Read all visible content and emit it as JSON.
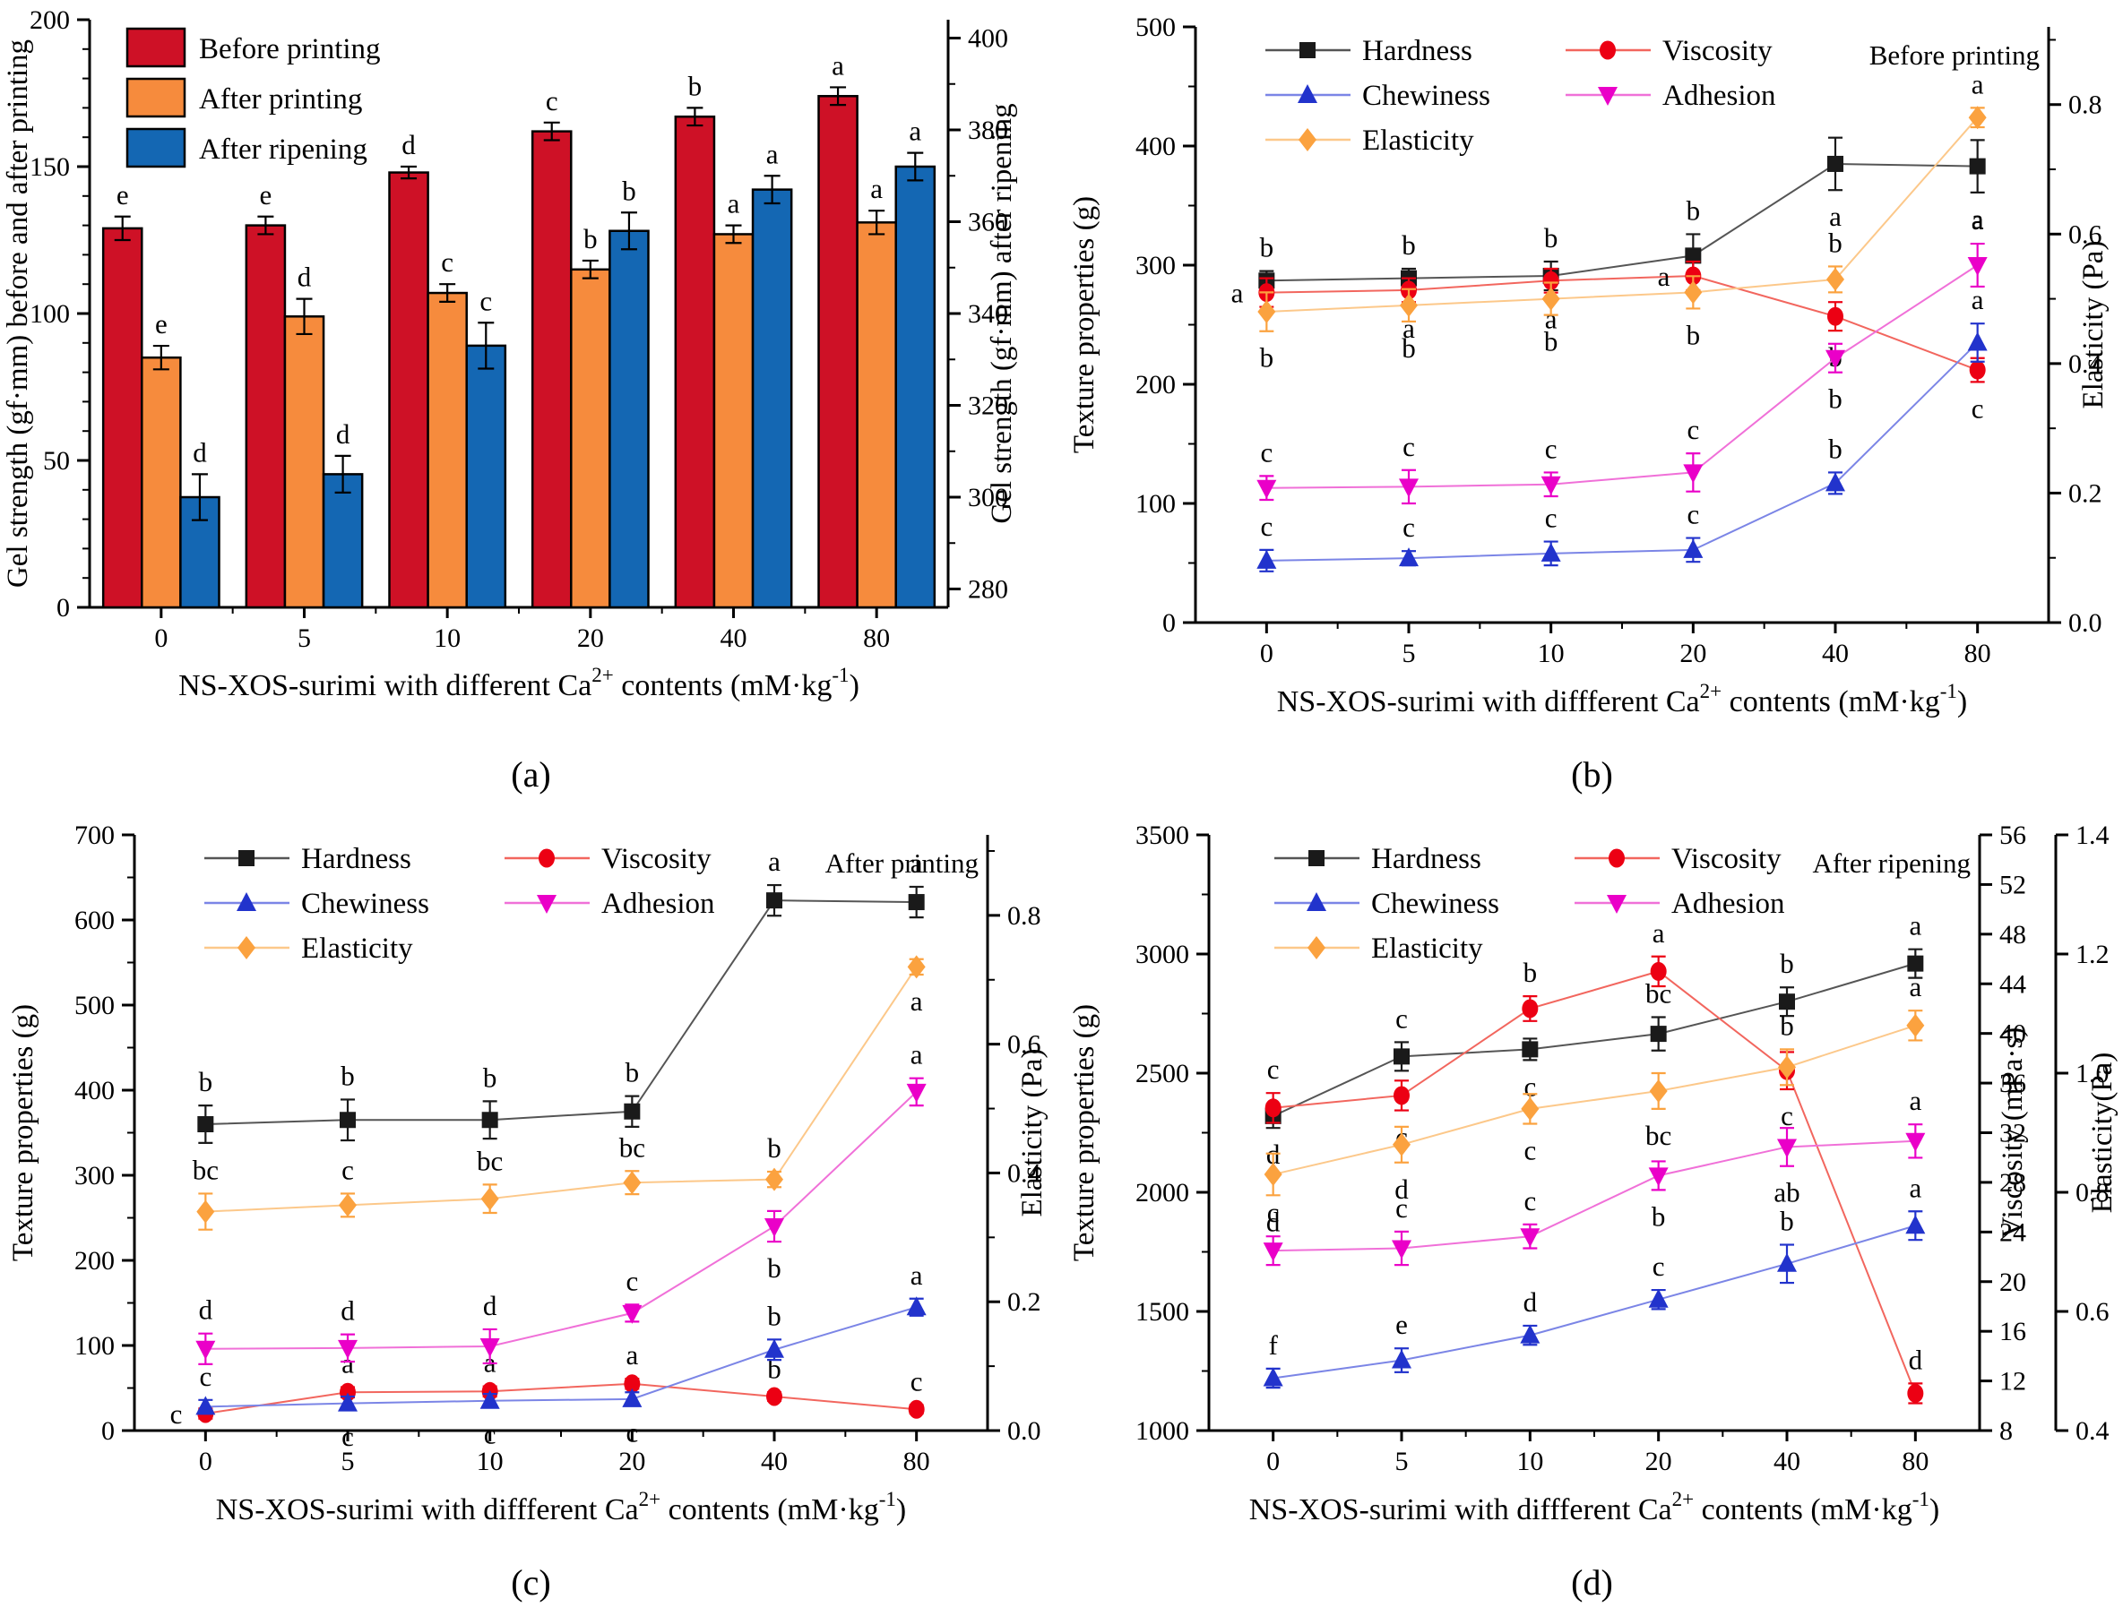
{
  "figure": {
    "captions": {
      "a": "(a)",
      "b": "(b)",
      "c": "(c)",
      "d": "(d)"
    }
  },
  "chart_data": [
    {
      "id": "a",
      "type": "bar",
      "panel_tag": "",
      "x_categories": [
        "0",
        "5",
        "10",
        "20",
        "40",
        "80"
      ],
      "x_title_parts": [
        {
          "t": "NS-XOS-surimi with different Ca"
        },
        {
          "t": "2+",
          "sup": true
        },
        {
          "t": " contents (mM·kg"
        },
        {
          "t": "-1",
          "sup": true
        },
        {
          "t": ")"
        }
      ],
      "axes": {
        "left": {
          "title": "Gel strength (gf·mm) before and after printing",
          "min": 0,
          "max": 200,
          "major": 50,
          "minor": 10,
          "decimals": 0
        },
        "right": {
          "title": "Gel strength (gf·mm) after ripening",
          "min": 276,
          "max": 404,
          "major": 20,
          "minor": 10,
          "label_start": 280,
          "label_end": 400,
          "decimals": 0
        }
      },
      "legend": {
        "style": "swatches",
        "rows": [
          [
            "Before printing"
          ],
          [
            "After printing"
          ],
          [
            "After ripening"
          ]
        ]
      },
      "series": [
        {
          "name": "Before printing",
          "axis": "left",
          "color": "#ce1126",
          "values": [
            129,
            130,
            148,
            162,
            167,
            174
          ],
          "errors": [
            4,
            3,
            2,
            3,
            3,
            3
          ],
          "letters": [
            "e",
            "e",
            "d",
            "c",
            "b",
            "a"
          ]
        },
        {
          "name": "After printing",
          "axis": "left",
          "color": "#f68b3d",
          "values": [
            85,
            99,
            107,
            115,
            127,
            131
          ],
          "errors": [
            4,
            6,
            3,
            3,
            3,
            4
          ],
          "letters": [
            "e",
            "d",
            "c",
            "b",
            "a",
            "a"
          ]
        },
        {
          "name": "After ripening",
          "axis": "right",
          "color": "#1467b3",
          "values": [
            300,
            305,
            333,
            358,
            367,
            372
          ],
          "errors": [
            5,
            4,
            5,
            4,
            3,
            3
          ],
          "letters": [
            "d",
            "d",
            "c",
            "b",
            "a",
            "a"
          ]
        }
      ]
    },
    {
      "id": "b",
      "type": "line",
      "panel_tag": "Before printing",
      "x_categories": [
        "0",
        "5",
        "10",
        "20",
        "40",
        "80"
      ],
      "x_title_parts": [
        {
          "t": "NS-XOS-surimi with diffferent Ca"
        },
        {
          "t": "2+",
          "sup": true
        },
        {
          "t": " contents (mM·kg"
        },
        {
          "t": "-1",
          "sup": true
        },
        {
          "t": ")"
        }
      ],
      "axes": {
        "left": {
          "title": "Texture properties (g)",
          "min": 0,
          "max": 500,
          "major": 100,
          "minor": 50,
          "decimals": 0
        },
        "right": {
          "title": "Elasticity (Pa)",
          "min": 0,
          "max": 0.92,
          "major": 0.2,
          "minor": 0.1,
          "label_start": 0,
          "label_end": 0.8,
          "decimals": 1
        }
      },
      "legend": {
        "style": "lines",
        "rows": [
          [
            "Hardness",
            "Viscosity"
          ],
          [
            "Chewiness",
            "Adhesion"
          ],
          [
            "Elasticity"
          ]
        ]
      },
      "series": [
        {
          "name": "Hardness",
          "axis": "left",
          "marker": "square",
          "color": "#1a1a1a",
          "line_color": "#555555",
          "values": [
            287,
            289,
            291,
            308,
            385,
            383
          ],
          "errors": [
            8,
            8,
            12,
            18,
            22,
            22
          ],
          "letters": [
            "b",
            "b",
            "b",
            "b",
            "a",
            "a"
          ],
          "letter_pos": [
            "above",
            "above",
            "above",
            "above",
            "below",
            "below"
          ]
        },
        {
          "name": "Viscosity",
          "axis": "left",
          "marker": "circle",
          "color": "#ec0013",
          "line_color": "#f2665e",
          "values": [
            277,
            279,
            287,
            291,
            257,
            212
          ],
          "errors": [
            12,
            10,
            10,
            12,
            12,
            10
          ],
          "letters": [
            "a",
            "a",
            "a",
            "a",
            "b",
            "c"
          ],
          "letter_pos": [
            "left",
            "below",
            "below",
            "left",
            "below",
            "below"
          ]
        },
        {
          "name": "Chewiness",
          "axis": "left",
          "marker": "triangle-up",
          "color": "#2233cc",
          "line_color": "#7b85e6",
          "values": [
            52,
            54,
            58,
            61,
            117,
            235
          ],
          "errors": [
            9,
            6,
            10,
            10,
            9,
            16
          ],
          "letters": [
            "c",
            "c",
            "c",
            "c",
            "b",
            "a"
          ],
          "letter_pos": [
            "above",
            "above",
            "above",
            "above",
            "above",
            "above"
          ]
        },
        {
          "name": "Adhesion",
          "axis": "left",
          "marker": "triangle-down",
          "color": "#ea00c8",
          "line_color": "#f070d8",
          "values": [
            113,
            114,
            116,
            126,
            222,
            300
          ],
          "errors": [
            10,
            14,
            10,
            16,
            12,
            18
          ],
          "letters": [
            "c",
            "c",
            "c",
            "c",
            "b",
            "a"
          ],
          "letter_pos": [
            "above",
            "above",
            "above",
            "above",
            "below",
            "above"
          ]
        },
        {
          "name": "Elasticity",
          "axis": "right",
          "marker": "diamond",
          "color": "#fba23f",
          "line_color": "#fcc88a",
          "values": [
            0.48,
            0.49,
            0.5,
            0.51,
            0.53,
            0.78
          ],
          "errors": [
            0.03,
            0.025,
            0.025,
            0.025,
            0.02,
            0.015
          ],
          "letters": [
            "b",
            "b",
            "b",
            "b",
            "b",
            "a"
          ],
          "letter_pos": [
            "below",
            "below",
            "below",
            "below",
            "above",
            "above"
          ]
        }
      ]
    },
    {
      "id": "c",
      "type": "line",
      "panel_tag": "After printing",
      "x_categories": [
        "0",
        "5",
        "10",
        "20",
        "40",
        "80"
      ],
      "x_title_parts": [
        {
          "t": "NS-XOS-surimi with diffferent Ca"
        },
        {
          "t": "2+",
          "sup": true
        },
        {
          "t": " contents (mM·kg"
        },
        {
          "t": "-1",
          "sup": true
        },
        {
          "t": ")"
        }
      ],
      "axes": {
        "left": {
          "title": "Texture properties (g)",
          "min": 0,
          "max": 700,
          "major": 100,
          "minor": 50,
          "decimals": 0
        },
        "right": {
          "title": "Elasticity (Pa)",
          "min": 0,
          "max": 0.925,
          "major": 0.2,
          "minor": 0.1,
          "label_start": 0,
          "label_end": 0.8,
          "decimals": 1
        }
      },
      "legend": {
        "style": "lines",
        "rows": [
          [
            "Hardness",
            "Viscosity"
          ],
          [
            "Chewiness",
            "Adhesion"
          ],
          [
            "Elasticity"
          ]
        ]
      },
      "series": [
        {
          "name": "Hardness",
          "axis": "left",
          "marker": "square",
          "color": "#1a1a1a",
          "line_color": "#555555",
          "values": [
            360,
            365,
            365,
            375,
            623,
            621
          ],
          "errors": [
            22,
            24,
            22,
            18,
            18,
            18
          ],
          "letters": [
            "b",
            "b",
            "b",
            "b",
            "a",
            "a"
          ],
          "letter_pos": [
            "above",
            "above",
            "above",
            "above",
            "above",
            "above"
          ]
        },
        {
          "name": "Viscosity",
          "axis": "left",
          "marker": "circle",
          "color": "#ec0013",
          "line_color": "#f2665e",
          "values": [
            20,
            45,
            46,
            55,
            40,
            25
          ],
          "errors": [
            6,
            6,
            6,
            6,
            5,
            5
          ],
          "letters": [
            "c",
            "a",
            "a",
            "a",
            "b",
            "c"
          ],
          "letter_pos": [
            "left",
            "above",
            "above",
            "above",
            "above",
            "above"
          ]
        },
        {
          "name": "Chewiness",
          "axis": "left",
          "marker": "triangle-up",
          "color": "#2233cc",
          "line_color": "#7b85e6",
          "values": [
            28,
            32,
            35,
            37,
            95,
            145
          ],
          "errors": [
            8,
            8,
            8,
            8,
            12,
            10
          ],
          "letters": [
            "c",
            "c",
            "c",
            "c",
            "b",
            "a"
          ],
          "letter_pos": [
            "above",
            "below",
            "below",
            "below",
            "above",
            "above"
          ]
        },
        {
          "name": "Adhesion",
          "axis": "left",
          "marker": "triangle-down",
          "color": "#ea00c8",
          "line_color": "#f070d8",
          "values": [
            96,
            97,
            99,
            138,
            240,
            398
          ],
          "errors": [
            18,
            16,
            20,
            10,
            18,
            16
          ],
          "letters": [
            "d",
            "d",
            "d",
            "c",
            "b",
            "a"
          ],
          "letter_pos": [
            "above",
            "above",
            "above",
            "above",
            "below",
            "above"
          ]
        },
        {
          "name": "Elasticity",
          "axis": "right",
          "marker": "diamond",
          "color": "#fba23f",
          "line_color": "#fcc88a",
          "values": [
            0.34,
            0.35,
            0.36,
            0.385,
            0.39,
            0.72
          ],
          "errors": [
            0.028,
            0.018,
            0.022,
            0.018,
            0.012,
            0.012
          ],
          "letters": [
            "bc",
            "c",
            "bc",
            "bc",
            "b",
            "a"
          ],
          "letter_pos": [
            "above",
            "above",
            "above",
            "above",
            "above",
            "below"
          ]
        }
      ]
    },
    {
      "id": "d",
      "type": "line",
      "panel_tag": "After ripening",
      "x_categories": [
        "0",
        "5",
        "10",
        "20",
        "40",
        "80"
      ],
      "x_title_parts": [
        {
          "t": "NS-XOS-surimi with diffferent Ca"
        },
        {
          "t": "2+",
          "sup": true
        },
        {
          "t": " contents (mM·kg"
        },
        {
          "t": "-1",
          "sup": true
        },
        {
          "t": ")"
        }
      ],
      "axes": {
        "left": {
          "title": "Texture properties (g)",
          "min": 1000,
          "max": 3500,
          "major": 500,
          "minor": 250,
          "decimals": 0
        },
        "right": {
          "title": "Viscosity (mPa·s)",
          "min": 8,
          "max": 56,
          "major": 4,
          "minor": 0,
          "decimals": 0
        },
        "right2": {
          "title": "Elasticity(Pa)",
          "min": 0.4,
          "max": 1.4,
          "major": 0.2,
          "minor": 0,
          "decimals": 1
        }
      },
      "legend": {
        "style": "lines",
        "rows": [
          [
            "Hardness",
            "Viscosity"
          ],
          [
            "Chewiness",
            "Adhesion"
          ],
          [
            "Elasticity"
          ]
        ]
      },
      "series": [
        {
          "name": "Hardness",
          "axis": "left",
          "marker": "square",
          "color": "#1a1a1a",
          "line_color": "#555555",
          "values": [
            2320,
            2570,
            2600,
            2665,
            2800,
            2960
          ],
          "errors": [
            50,
            60,
            45,
            70,
            60,
            60
          ],
          "letters": [
            "d",
            "c",
            "c",
            "bc",
            "b",
            "a"
          ],
          "letter_pos": [
            "below",
            "above",
            "below",
            "above",
            "above",
            "above"
          ]
        },
        {
          "name": "Viscosity",
          "axis": "right",
          "marker": "circle",
          "color": "#ec0013",
          "line_color": "#f2665e",
          "values": [
            34,
            35,
            42,
            45,
            37,
            11
          ],
          "errors": [
            1.2,
            1.2,
            1.0,
            1.2,
            1.5,
            0.8
          ],
          "letters": [
            "c",
            "c",
            "b",
            "a",
            "c",
            "d"
          ],
          "letter_pos": [
            "above",
            "below",
            "above",
            "above",
            "below",
            "above"
          ]
        },
        {
          "name": "Chewiness",
          "axis": "left",
          "marker": "triangle-up",
          "color": "#2233cc",
          "line_color": "#7b85e6",
          "values": [
            1220,
            1295,
            1400,
            1550,
            1700,
            1860
          ],
          "errors": [
            40,
            50,
            40,
            40,
            80,
            60
          ],
          "letters": [
            "f",
            "e",
            "d",
            "c",
            "b",
            "a"
          ],
          "letter_pos": [
            "above",
            "above",
            "above",
            "above",
            "above",
            "above"
          ]
        },
        {
          "name": "Adhesion",
          "axis": "left",
          "marker": "triangle-down",
          "color": "#ea00c8",
          "line_color": "#f070d8",
          "values": [
            1755,
            1765,
            1815,
            2070,
            2190,
            2215
          ],
          "errors": [
            60,
            70,
            50,
            60,
            80,
            70
          ],
          "letters": [
            "c",
            "c",
            "c",
            "b",
            "ab",
            "a"
          ],
          "letter_pos": [
            "above",
            "above",
            "above",
            "below",
            "below",
            "above"
          ]
        },
        {
          "name": "Elasticity",
          "axis": "right2",
          "marker": "diamond",
          "color": "#fba23f",
          "line_color": "#fcc88a",
          "values": [
            0.83,
            0.88,
            0.94,
            0.97,
            1.01,
            1.08
          ],
          "errors": [
            0.035,
            0.03,
            0.025,
            0.03,
            0.03,
            0.025
          ],
          "letters": [
            "d",
            "d",
            "c",
            "bc",
            "b",
            "a"
          ],
          "letter_pos": [
            "below",
            "below",
            "below",
            "below",
            "above",
            "above"
          ]
        }
      ]
    }
  ]
}
